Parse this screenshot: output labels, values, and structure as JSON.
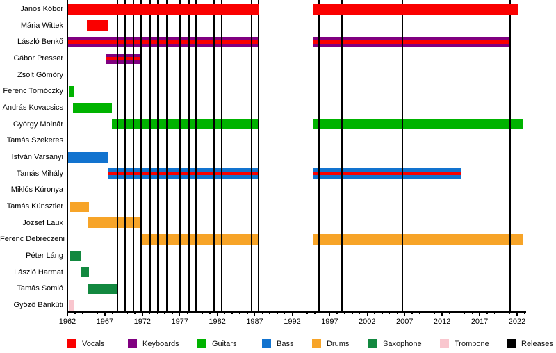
{
  "chart_data": {
    "type": "timeline",
    "description": "Gantt-style band membership timeline with vertical release lines",
    "x_axis": {
      "start_year": 1962,
      "end_year": 2023,
      "minor_tick_step": 1,
      "label_step": 5,
      "labels": [
        "1962",
        "1967",
        "1972",
        "1977",
        "1982",
        "1987",
        "1992",
        "1997",
        "2002",
        "2007",
        "2012",
        "2017",
        "2022"
      ]
    },
    "members": [
      {
        "name": "János Kóbor",
        "roles": [
          "Vocals"
        ],
        "segments": [
          [
            1962.0,
            1987.6
          ],
          [
            1994.8,
            2022.1
          ]
        ]
      },
      {
        "name": "Mária Wittek",
        "roles": [
          "Vocals"
        ],
        "segments": [
          [
            1964.6,
            1967.5
          ]
        ]
      },
      {
        "name": "László Benkő",
        "roles": [
          "Keyboards",
          "Vocals"
        ],
        "segments": [
          [
            1962.0,
            1987.6
          ],
          [
            1994.8,
            2021.1
          ]
        ]
      },
      {
        "name": "Gábor Presser",
        "roles": [
          "Keyboards",
          "Vocals"
        ],
        "segments": [
          [
            1967.1,
            1971.8
          ]
        ]
      },
      {
        "name": "Zsolt Gömöry",
        "roles": [],
        "segments": []
      },
      {
        "name": "Ferenc Tornóczky",
        "roles": [
          "Guitars"
        ],
        "segments": [
          [
            1962.2,
            1962.8
          ]
        ]
      },
      {
        "name": "András Kovacsics",
        "roles": [
          "Guitars"
        ],
        "segments": [
          [
            1962.7,
            1967.9
          ]
        ]
      },
      {
        "name": "György Molnár",
        "roles": [
          "Guitars"
        ],
        "segments": [
          [
            1967.9,
            1987.6
          ],
          [
            1994.8,
            2022.7
          ]
        ]
      },
      {
        "name": "Tamás Szekeres",
        "roles": [],
        "segments": []
      },
      {
        "name": "István Varsányi",
        "roles": [
          "Bass"
        ],
        "segments": [
          [
            1962.0,
            1967.5
          ]
        ]
      },
      {
        "name": "Tamás Mihály",
        "roles": [
          "Bass",
          "Vocals"
        ],
        "segments": [
          [
            1967.5,
            1987.6
          ],
          [
            1994.8,
            2014.6
          ]
        ]
      },
      {
        "name": "Miklós Kúronya",
        "roles": [],
        "segments": []
      },
      {
        "name": "Tamás Künsztler",
        "roles": [
          "Drums"
        ],
        "segments": [
          [
            1962.4,
            1964.9
          ]
        ]
      },
      {
        "name": "József Laux",
        "roles": [
          "Drums"
        ],
        "segments": [
          [
            1964.7,
            1971.8
          ]
        ]
      },
      {
        "name": "Ferenc Debreczeni",
        "roles": [
          "Drums"
        ],
        "segments": [
          [
            1971.7,
            1987.6
          ],
          [
            1994.8,
            2022.7
          ]
        ]
      },
      {
        "name": "Péter Láng",
        "roles": [
          "Saxophone"
        ],
        "segments": [
          [
            1962.4,
            1963.9
          ]
        ]
      },
      {
        "name": "László Harmat",
        "roles": [
          "Saxophone"
        ],
        "segments": [
          [
            1963.8,
            1964.9
          ]
        ]
      },
      {
        "name": "Tamás Somló",
        "roles": [
          "Saxophone"
        ],
        "segments": [
          [
            1964.7,
            1968.7
          ]
        ]
      },
      {
        "name": "Győző Bánkúti",
        "roles": [
          "Trombone"
        ],
        "segments": [
          [
            1962.2,
            1962.9
          ]
        ]
      }
    ],
    "releases": [
      1968.7,
      1969.7,
      1970.8,
      1971.9,
      1973.0,
      1974.1,
      1975.3,
      1977.0,
      1978.3,
      1979.2,
      1981.6,
      1982.6,
      1986.6,
      1987.5,
      1995.6,
      1998.6,
      2006.7,
      2021.1
    ],
    "legend": [
      {
        "label": "Vocals",
        "color": "#fa0000"
      },
      {
        "label": "Keyboards",
        "color": "#800080"
      },
      {
        "label": "Guitars",
        "color": "#00b300"
      },
      {
        "label": "Bass",
        "color": "#1273cf"
      },
      {
        "label": "Drums",
        "color": "#f7a428"
      },
      {
        "label": "Saxophone",
        "color": "#12883f"
      },
      {
        "label": "Trombone",
        "color": "#f9c6ce"
      },
      {
        "label": "Releases",
        "color": "#000000"
      }
    ]
  }
}
